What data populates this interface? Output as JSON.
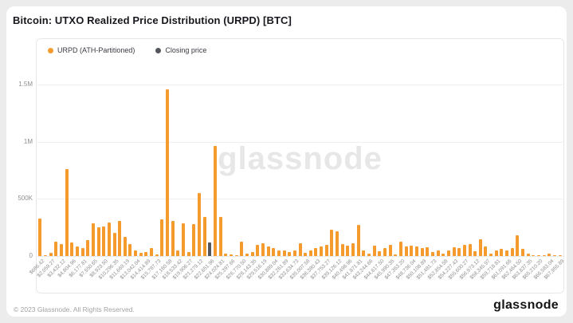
{
  "page": {
    "title": "Bitcoin: UTXO Realized Price Distribution (URPD) [BTC]"
  },
  "legend": {
    "urpd_label": "URPD (ATH-Partitioned)",
    "closing_label": "Closing price"
  },
  "watermark": "glassnode",
  "footer": {
    "copyright": "© 2023 Glassnode. All Rights Reserved.",
    "logo_text": "glassnode"
  },
  "colors": {
    "bar_orange": "#F59B2D",
    "closing_gray": "#54585E",
    "grid": "#efefef",
    "axis_text": "#909090"
  },
  "chart_data": {
    "type": "bar",
    "title": "Bitcoin: UTXO Realized Price Distribution (URPD) [BTC]",
    "xlabel": "",
    "ylabel": "",
    "ylim": [
      0,
      1500000
    ],
    "grid": true,
    "legend_position": "top-left",
    "y_ticks": [
      {
        "value": 0,
        "label": "0"
      },
      {
        "value": 500000,
        "label": "500K"
      },
      {
        "value": 1000000,
        "label": "1M"
      },
      {
        "value": 1500000,
        "label": "1.5M"
      }
    ],
    "series": [
      {
        "name": "URPD (ATH-Partitioned)",
        "color": "#F59B2D"
      },
      {
        "name": "Closing price",
        "color": "#54585E"
      }
    ],
    "closing_price_index": 32,
    "x_tick_labels": [
      "$686.42",
      "$2,059.27",
      "$3,432.12",
      "$4,804.96",
      "$6,177.81",
      "$7,550.65",
      "$8,923.50",
      "$10,296.35",
      "$11,669.19",
      "$13,042.04",
      "$14,414.89",
      "$15,787.73",
      "$17,160.58",
      "$18,533.42",
      "$19,906.27",
      "$21,279.12",
      "$22,651.96",
      "$24,024.81",
      "$25,397.66",
      "$26,770.50",
      "$28,143.35",
      "$29,516.19",
      "$30,889.04",
      "$32,261.89",
      "$33,634.73",
      "$35,007.58",
      "$36,380.43",
      "$37,753.27",
      "$39,126.12",
      "$40,498.96",
      "$41,871.81",
      "$43,244.66",
      "$44,617.50",
      "$45,990.35",
      "$47,363.20",
      "$48,736.04",
      "$50,108.89",
      "$51,481.73",
      "$52,854.58",
      "$54,227.43",
      "$55,600.27",
      "$56,973.12",
      "$58,345.97",
      "$59,718.81",
      "$61,091.66",
      "$62,464.50",
      "$63,837.35",
      "$65,210.20",
      "$66,583.04",
      "$67,955.89"
    ],
    "values": [
      330000,
      8000,
      28000,
      127000,
      105000,
      760000,
      119000,
      83000,
      71000,
      143000,
      286000,
      250000,
      255000,
      293000,
      202000,
      310000,
      171000,
      107000,
      48000,
      25000,
      36000,
      71000,
      12000,
      321000,
      1456000,
      310000,
      48000,
      286000,
      36000,
      278000,
      548000,
      345000,
      119000,
      964000,
      345000,
      24000,
      12000,
      5000,
      124000,
      19000,
      36000,
      95000,
      114000,
      83000,
      71000,
      52000,
      48000,
      36000,
      48000,
      114000,
      25000,
      52000,
      71000,
      83000,
      100000,
      233000,
      214000,
      107000,
      90000,
      114000,
      274000,
      48000,
      24000,
      90000,
      43000,
      71000,
      100000,
      12000,
      124000,
      83000,
      90000,
      83000,
      71000,
      76000,
      36000,
      48000,
      20000,
      52000,
      76000,
      67000,
      95000,
      107000,
      43000,
      148000,
      83000,
      19000,
      52000,
      60000,
      48000,
      67000,
      179000,
      60000,
      19000,
      7000,
      5000,
      2000,
      19000,
      2000,
      5000
    ]
  }
}
